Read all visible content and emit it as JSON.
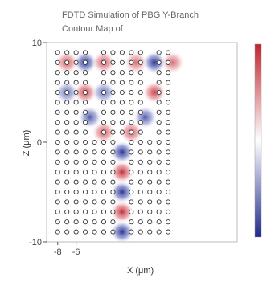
{
  "chart_data": {
    "type": "heatmap",
    "title": "FDTD Simulation of PBG Y-Branch",
    "subtitle": "Contour Map of",
    "xlabel": "X (μm)",
    "ylabel": "Z (μm)",
    "xlim": [
      -9.2,
      11.5
    ],
    "ylim": [
      -10,
      10
    ],
    "x_ticks": [
      -8,
      -6
    ],
    "y_ticks": [
      10,
      0,
      -10
    ],
    "colormap": [
      "#1e2a8c",
      "#ffffff",
      "#c0242f"
    ],
    "rod_lattice": {
      "x_start": -8,
      "x_end": 4,
      "z_start": -9,
      "z_end": 9,
      "pitch": 1,
      "defect_rows_removed_x": [
        -4,
        2
      ]
    },
    "field_lobes": [
      {
        "x": -5.0,
        "z": 8.0,
        "value": -1
      },
      {
        "x": -7.0,
        "z": 8.0,
        "value": 0.8
      },
      {
        "x": -3.0,
        "z": 8.0,
        "value": 0.8
      },
      {
        "x": -5.0,
        "z": 5.0,
        "value": 0.9
      },
      {
        "x": -7.0,
        "z": 5.0,
        "value": -0.7
      },
      {
        "x": -3.0,
        "z": 5.0,
        "value": -0.7
      },
      {
        "x": -4.5,
        "z": 2.5,
        "value": -0.8
      },
      {
        "x": -3.0,
        "z": 1.0,
        "value": 0.8
      },
      {
        "x": 2.5,
        "z": 8.0,
        "value": -1
      },
      {
        "x": 0.5,
        "z": 8.0,
        "value": 0.7
      },
      {
        "x": 4.5,
        "z": 8.0,
        "value": 0.7
      },
      {
        "x": 2.5,
        "z": 5.0,
        "value": 0.9
      },
      {
        "x": 1.5,
        "z": 2.5,
        "value": -0.8
      },
      {
        "x": 0.0,
        "z": 1.0,
        "value": 0.8
      },
      {
        "x": -1.0,
        "z": -1.0,
        "value": -1
      },
      {
        "x": -1.0,
        "z": -3.0,
        "value": 1
      },
      {
        "x": -1.0,
        "z": -5.0,
        "value": -1
      },
      {
        "x": -1.0,
        "z": -7.0,
        "value": 1
      },
      {
        "x": -1.0,
        "z": -9.0,
        "value": -1
      }
    ]
  }
}
